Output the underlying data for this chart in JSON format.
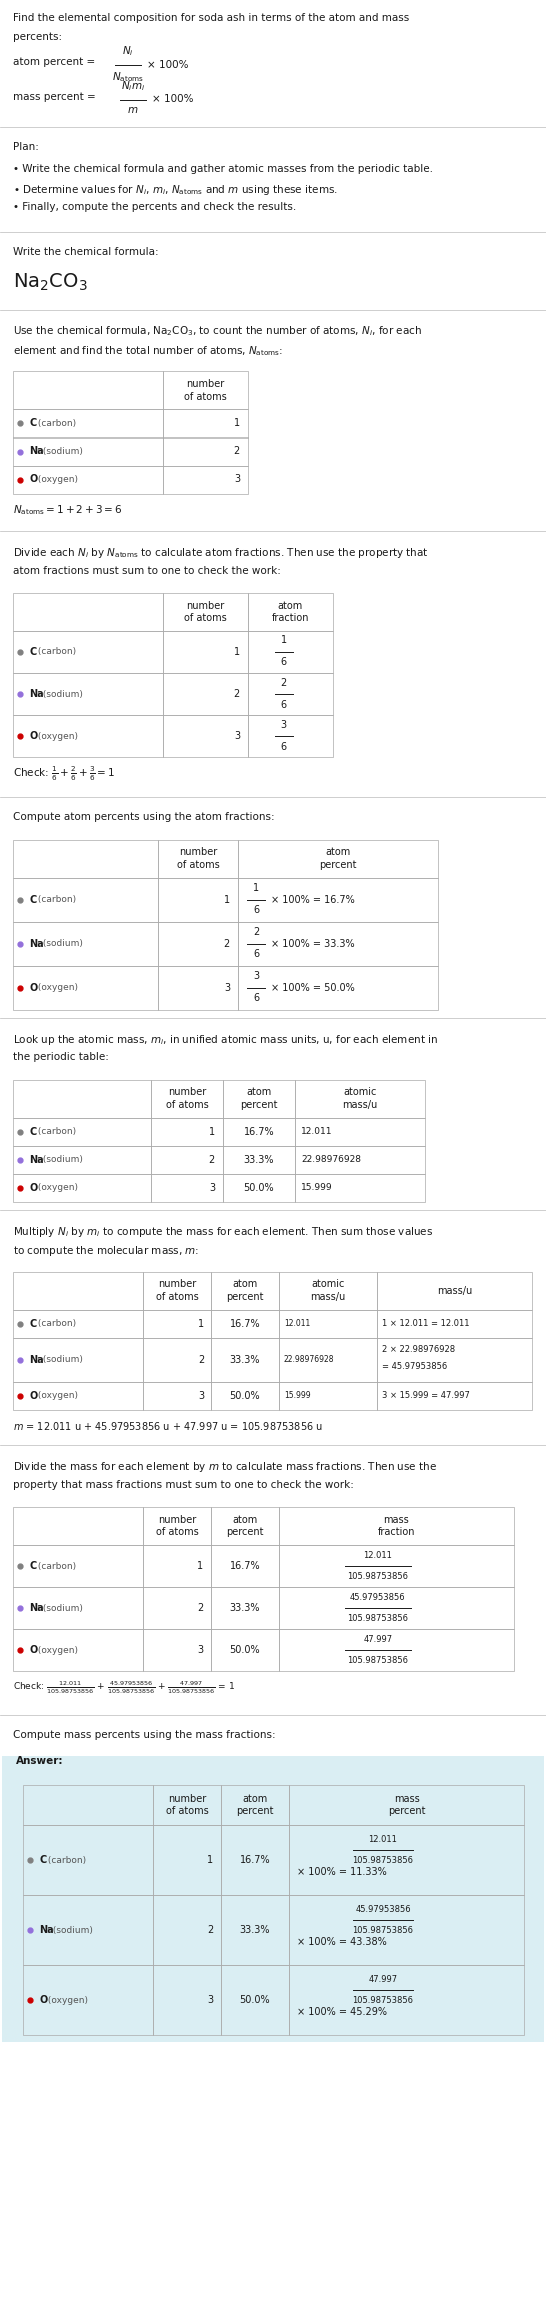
{
  "bg_color": "#ffffff",
  "answer_bg_color": "#daeef3",
  "text_color": "#1a1a1a",
  "table_border_color": "#aaaaaa",
  "element_colors": {
    "C": "#808080",
    "Na": "#9370DB",
    "O": "#cc0000"
  },
  "fig_width": 5.46,
  "fig_height": 23.24,
  "dpi": 100
}
